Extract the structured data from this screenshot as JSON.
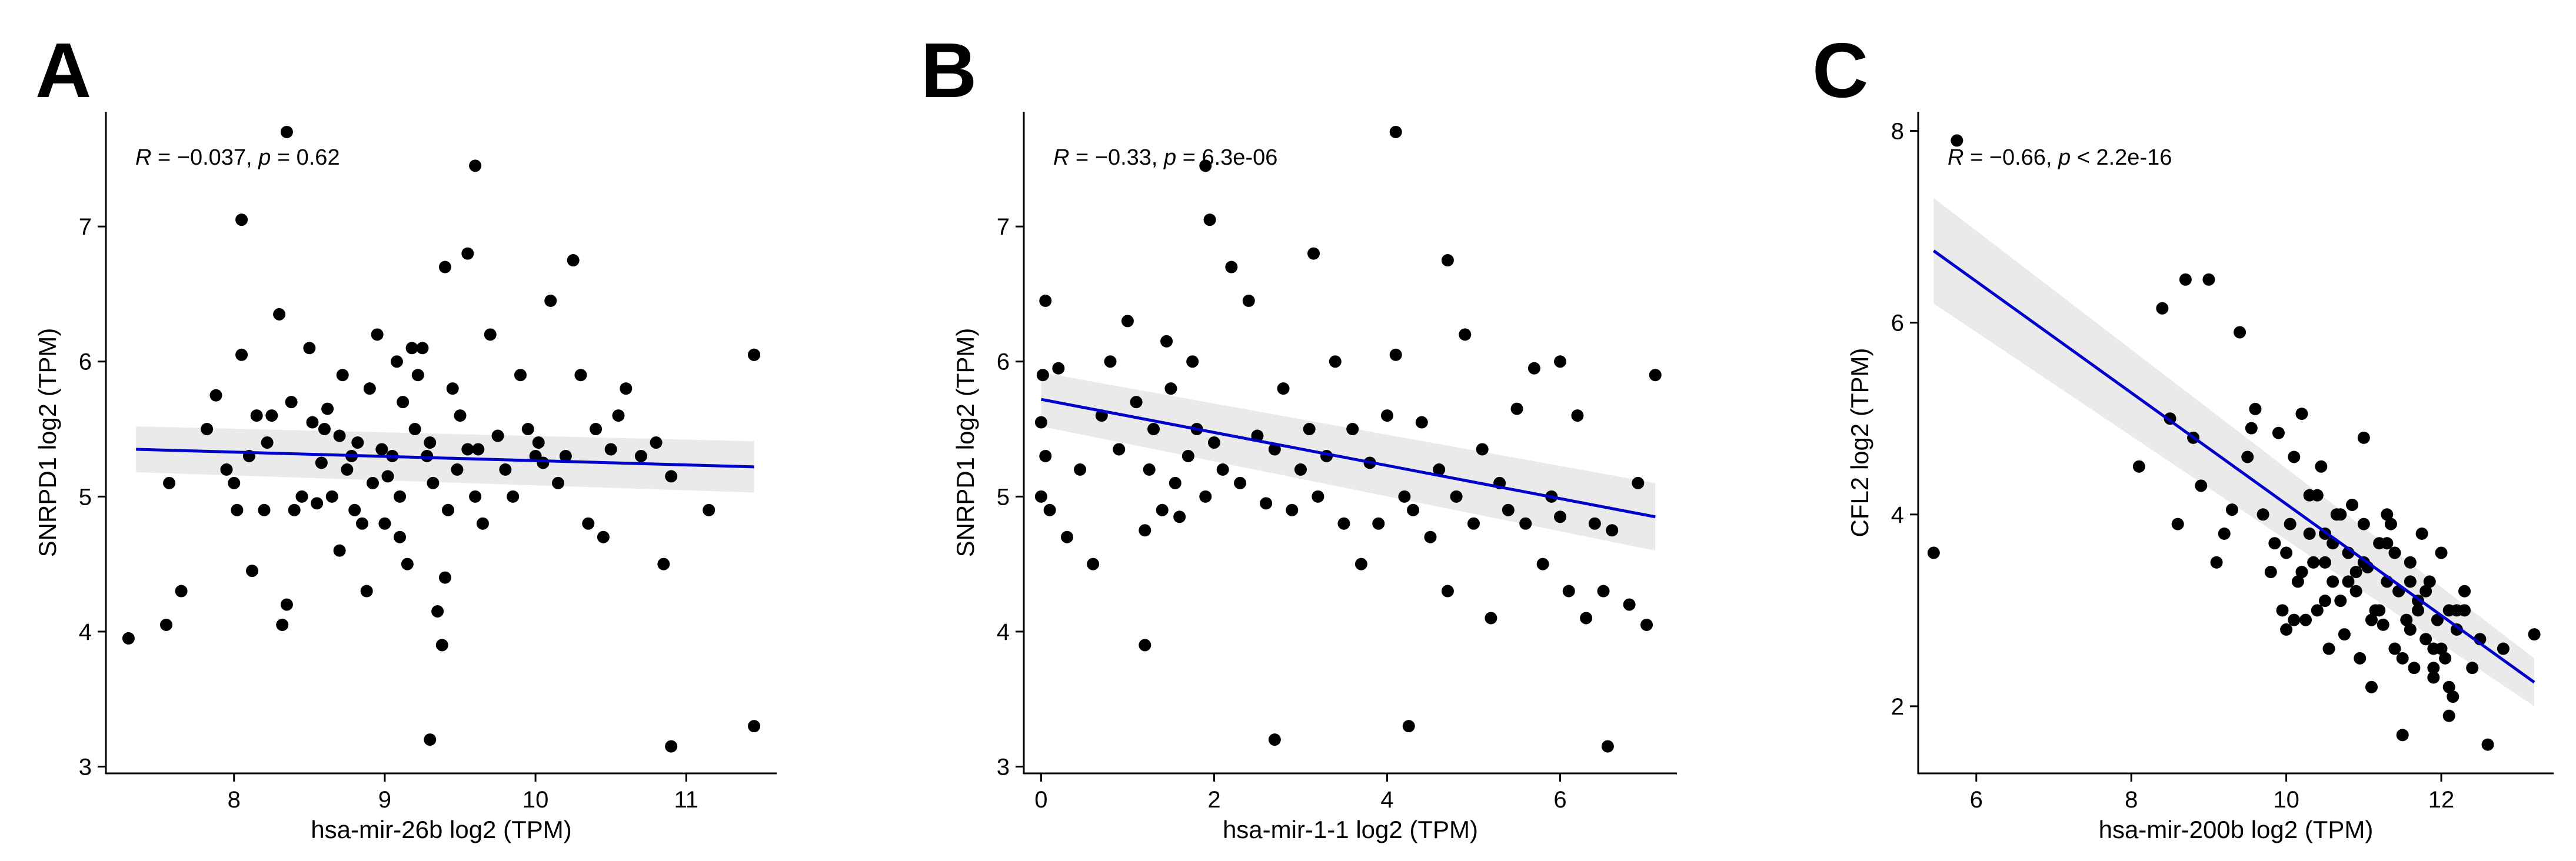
{
  "chart_data": [
    {
      "type": "scatter",
      "panel_label": "A",
      "xlabel": "hsa-mir-26b log2 (TPM)",
      "ylabel": "SNRPD1 log2 (TPM)",
      "xlim": [
        7.15,
        11.6
      ],
      "ylim": [
        2.95,
        7.85
      ],
      "xticks": [
        8,
        9,
        10,
        11
      ],
      "yticks": [
        3,
        4,
        5,
        6,
        7
      ],
      "annotation": {
        "r_label": "R",
        "r_text": " = −0.037, ",
        "p_label": "p",
        "p_text": " = 0.62"
      },
      "fit": {
        "x": [
          7.35,
          11.45
        ],
        "y": [
          5.35,
          5.22
        ],
        "ci_low": [
          5.18,
          5.03
        ],
        "ci_high": [
          5.52,
          5.41
        ],
        "color": "#0000cc"
      },
      "points": {
        "x": [
          7.3,
          7.55,
          7.57,
          7.65,
          7.82,
          7.88,
          7.95,
          8.0,
          8.02,
          8.05,
          8.1,
          8.12,
          8.15,
          8.2,
          8.22,
          8.25,
          8.3,
          8.32,
          8.35,
          8.38,
          8.4,
          8.45,
          8.5,
          8.52,
          8.55,
          8.58,
          8.6,
          8.62,
          8.65,
          8.7,
          8.72,
          8.75,
          8.78,
          8.8,
          8.82,
          8.85,
          8.88,
          8.9,
          8.92,
          8.95,
          8.98,
          9.0,
          9.02,
          9.05,
          9.08,
          9.1,
          9.12,
          9.15,
          9.18,
          9.2,
          9.22,
          9.25,
          9.28,
          9.3,
          9.32,
          9.35,
          9.38,
          9.4,
          9.42,
          9.45,
          9.48,
          9.5,
          9.55,
          9.6,
          9.62,
          9.65,
          9.7,
          9.75,
          9.8,
          9.85,
          9.9,
          9.95,
          10.0,
          10.02,
          10.05,
          10.1,
          10.15,
          10.2,
          10.25,
          10.3,
          10.35,
          10.4,
          10.45,
          10.5,
          10.55,
          10.6,
          10.7,
          10.8,
          10.85,
          10.9,
          11.15,
          11.45,
          11.45,
          8.35,
          9.6,
          10.9,
          9.3,
          11.45,
          8.05,
          8.7,
          9.55,
          9.1,
          9.4
        ],
        "y": [
          3.95,
          4.05,
          5.1,
          4.3,
          5.5,
          5.75,
          5.2,
          5.1,
          4.9,
          6.05,
          5.3,
          4.45,
          5.6,
          4.9,
          5.4,
          5.6,
          6.35,
          4.05,
          4.2,
          5.7,
          4.9,
          5.0,
          6.1,
          5.55,
          4.95,
          5.25,
          5.5,
          5.65,
          5.0,
          4.6,
          5.9,
          5.2,
          5.3,
          4.9,
          5.4,
          4.8,
          4.3,
          5.8,
          5.1,
          6.2,
          5.35,
          4.8,
          5.15,
          5.3,
          6.0,
          5.0,
          5.7,
          4.5,
          6.1,
          5.5,
          5.9,
          6.1,
          5.3,
          5.4,
          5.1,
          4.15,
          3.9,
          6.7,
          4.9,
          5.8,
          5.2,
          5.6,
          5.35,
          5.0,
          5.35,
          4.8,
          6.2,
          5.45,
          5.2,
          5.0,
          5.9,
          5.5,
          5.3,
          5.4,
          5.25,
          6.45,
          5.1,
          5.3,
          6.75,
          5.9,
          4.8,
          5.5,
          4.7,
          5.35,
          5.6,
          5.8,
          5.3,
          5.4,
          4.5,
          5.15,
          4.9,
          6.05,
          3.3,
          7.7,
          7.45,
          3.15,
          3.2,
          6.05,
          7.05,
          5.45,
          6.8,
          4.7,
          4.4
        ]
      }
    },
    {
      "type": "scatter",
      "panel_label": "B",
      "xlabel": "hsa-mir-1-1 log2 (TPM)",
      "ylabel": "SNRPD1 log2 (TPM)",
      "xlim": [
        -0.2,
        7.35
      ],
      "ylim": [
        2.95,
        7.85
      ],
      "xticks": [
        0,
        2,
        4,
        6
      ],
      "yticks": [
        3,
        4,
        5,
        6,
        7
      ],
      "annotation": {
        "r_label": "R",
        "r_text": " = −0.33, ",
        "p_label": "p",
        "p_text": " = 6.3e-06"
      },
      "fit": {
        "x": [
          0,
          7.1
        ],
        "y": [
          5.72,
          4.85
        ],
        "ci_low": [
          5.52,
          4.6
        ],
        "ci_high": [
          5.92,
          5.1
        ],
        "color": "#0000cc"
      },
      "points": {
        "x": [
          0.0,
          0.0,
          0.02,
          0.05,
          0.05,
          0.1,
          0.2,
          0.3,
          0.45,
          0.6,
          0.7,
          0.8,
          0.9,
          1.0,
          1.1,
          1.2,
          1.25,
          1.3,
          1.4,
          1.45,
          1.5,
          1.55,
          1.6,
          1.7,
          1.75,
          1.8,
          1.9,
          2.0,
          2.1,
          2.2,
          2.3,
          2.4,
          2.5,
          2.6,
          2.7,
          2.8,
          2.9,
          3.0,
          3.1,
          3.2,
          3.3,
          3.4,
          3.5,
          3.6,
          3.7,
          3.8,
          3.9,
          4.0,
          4.1,
          4.2,
          4.3,
          4.4,
          4.5,
          4.6,
          4.7,
          4.8,
          4.9,
          5.0,
          5.1,
          5.2,
          5.3,
          5.4,
          5.5,
          5.6,
          5.7,
          5.8,
          5.9,
          6.0,
          6.1,
          6.2,
          6.3,
          6.4,
          6.5,
          6.6,
          6.8,
          6.9,
          7.0,
          7.1,
          1.9,
          4.1,
          6.55,
          4.25,
          2.7,
          1.2,
          3.15,
          4.7,
          1.95,
          6.0
        ],
        "y": [
          5.0,
          5.55,
          5.9,
          6.45,
          5.3,
          4.9,
          5.95,
          4.7,
          5.2,
          4.5,
          5.6,
          6.0,
          5.35,
          6.3,
          5.7,
          4.75,
          5.2,
          5.5,
          4.9,
          6.15,
          5.8,
          5.1,
          4.85,
          5.3,
          6.0,
          5.5,
          5.0,
          5.4,
          5.2,
          6.7,
          5.1,
          6.45,
          5.45,
          4.95,
          5.35,
          5.8,
          4.9,
          5.2,
          5.5,
          5.0,
          5.3,
          6.0,
          4.8,
          5.5,
          4.5,
          5.25,
          4.8,
          5.6,
          6.05,
          5.0,
          4.9,
          5.55,
          4.7,
          5.2,
          4.3,
          5.0,
          6.2,
          4.8,
          5.35,
          4.1,
          5.1,
          4.9,
          5.65,
          4.8,
          5.95,
          4.5,
          5.0,
          4.85,
          4.3,
          5.6,
          4.1,
          4.8,
          4.3,
          4.75,
          4.2,
          5.1,
          4.05,
          5.9,
          7.45,
          7.7,
          3.15,
          3.3,
          3.2,
          3.9,
          6.8,
          6.75,
          7.05,
          6.0
        ]
      }
    },
    {
      "type": "scatter",
      "panel_label": "C",
      "xlabel": "hsa-mir-200b log2 (TPM)",
      "ylabel": "CFL2 log2 (TPM)",
      "xlim": [
        5.25,
        13.45
      ],
      "ylim": [
        1.3,
        8.2
      ],
      "xticks": [
        6,
        8,
        10,
        12
      ],
      "yticks": [
        2,
        4,
        6,
        8
      ],
      "annotation": {
        "r_label": "R",
        "r_text": " = −0.66, ",
        "p_label": "p",
        "p_text": " < 2.2e-16"
      },
      "fit": {
        "x": [
          5.45,
          13.2
        ],
        "y": [
          6.75,
          2.25
        ],
        "ci_low": [
          6.2,
          2.0
        ],
        "ci_high": [
          7.3,
          2.5
        ],
        "color": "#0000cc"
      },
      "points": {
        "x": [
          5.45,
          5.75,
          8.1,
          8.4,
          8.5,
          8.6,
          8.7,
          8.8,
          8.9,
          9.0,
          9.1,
          9.2,
          9.3,
          9.4,
          9.5,
          9.55,
          9.6,
          9.7,
          9.8,
          9.85,
          9.9,
          9.95,
          10.0,
          10.05,
          10.1,
          10.15,
          10.2,
          10.25,
          10.3,
          10.35,
          10.4,
          10.45,
          10.5,
          10.55,
          10.6,
          10.65,
          10.7,
          10.75,
          10.8,
          10.85,
          10.9,
          10.95,
          11.0,
          11.05,
          11.1,
          11.15,
          11.2,
          11.25,
          11.3,
          11.35,
          11.4,
          11.45,
          11.5,
          11.55,
          11.6,
          11.65,
          11.7,
          11.75,
          11.8,
          11.85,
          11.9,
          11.95,
          12.0,
          12.05,
          12.1,
          12.15,
          12.2,
          12.3,
          12.4,
          12.5,
          12.6,
          12.8,
          13.2,
          10.0,
          10.2,
          10.4,
          10.6,
          10.8,
          11.0,
          11.2,
          11.4,
          11.6,
          11.8,
          12.0,
          12.2,
          10.1,
          10.3,
          10.5,
          10.7,
          10.9,
          11.1,
          11.3,
          11.5,
          11.7,
          11.9,
          12.1,
          11.0,
          11.3,
          11.6,
          11.9,
          12.1,
          12.3,
          10.5
        ],
        "y": [
          3.6,
          7.9,
          4.5,
          6.15,
          5.0,
          3.9,
          6.45,
          4.8,
          4.3,
          6.45,
          3.5,
          3.8,
          4.05,
          5.9,
          4.6,
          4.9,
          5.1,
          4.0,
          3.4,
          3.7,
          4.85,
          3.0,
          2.8,
          3.9,
          4.6,
          3.3,
          5.05,
          2.9,
          4.2,
          3.5,
          3.0,
          4.5,
          3.8,
          2.6,
          3.3,
          4.0,
          3.1,
          2.75,
          3.6,
          4.1,
          3.2,
          2.5,
          3.9,
          3.45,
          2.2,
          3.0,
          3.7,
          2.85,
          3.3,
          3.9,
          2.6,
          3.2,
          1.7,
          2.9,
          3.5,
          2.4,
          3.1,
          3.8,
          2.7,
          3.3,
          2.3,
          2.9,
          3.6,
          2.5,
          3.0,
          2.1,
          2.8,
          3.2,
          2.4,
          2.7,
          1.6,
          2.6,
          2.75,
          3.6,
          3.4,
          4.2,
          3.7,
          3.3,
          3.5,
          3.0,
          3.6,
          2.8,
          3.2,
          2.6,
          3.0,
          2.9,
          3.8,
          3.1,
          4.0,
          3.4,
          2.9,
          3.7,
          2.5,
          3.0,
          2.6,
          2.2,
          4.8,
          4.0,
          3.3,
          2.4,
          1.9,
          3.0,
          3.5
        ]
      }
    }
  ]
}
